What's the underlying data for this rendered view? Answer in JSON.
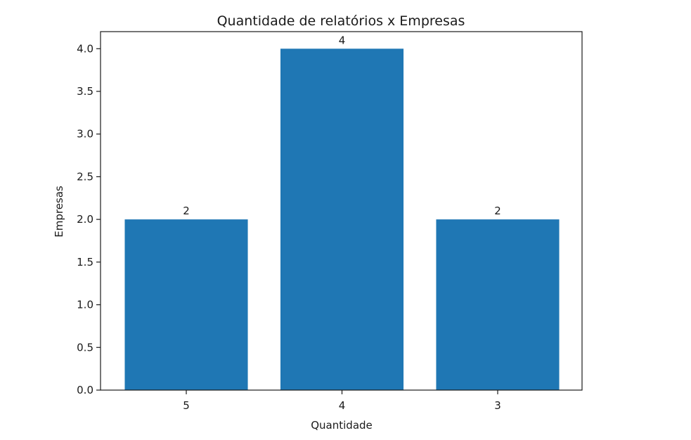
{
  "chart_data": {
    "type": "bar",
    "title": "Quantidade de relatórios x Empresas",
    "xlabel": "Quantidade",
    "ylabel": "Empresas",
    "categories": [
      "5",
      "4",
      "3"
    ],
    "values": [
      2,
      4,
      2
    ],
    "data_labels": [
      "2",
      "4",
      "2"
    ],
    "ylim": [
      0,
      4.2
    ],
    "yticks": [
      0.0,
      0.5,
      1.0,
      1.5,
      2.0,
      2.5,
      3.0,
      3.5,
      4.0
    ],
    "ytick_labels": [
      "0.0",
      "0.5",
      "1.0",
      "1.5",
      "2.0",
      "2.5",
      "3.0",
      "3.5",
      "4.0"
    ],
    "bar_color": "#1f77b4",
    "grid": false,
    "legend": "none"
  }
}
